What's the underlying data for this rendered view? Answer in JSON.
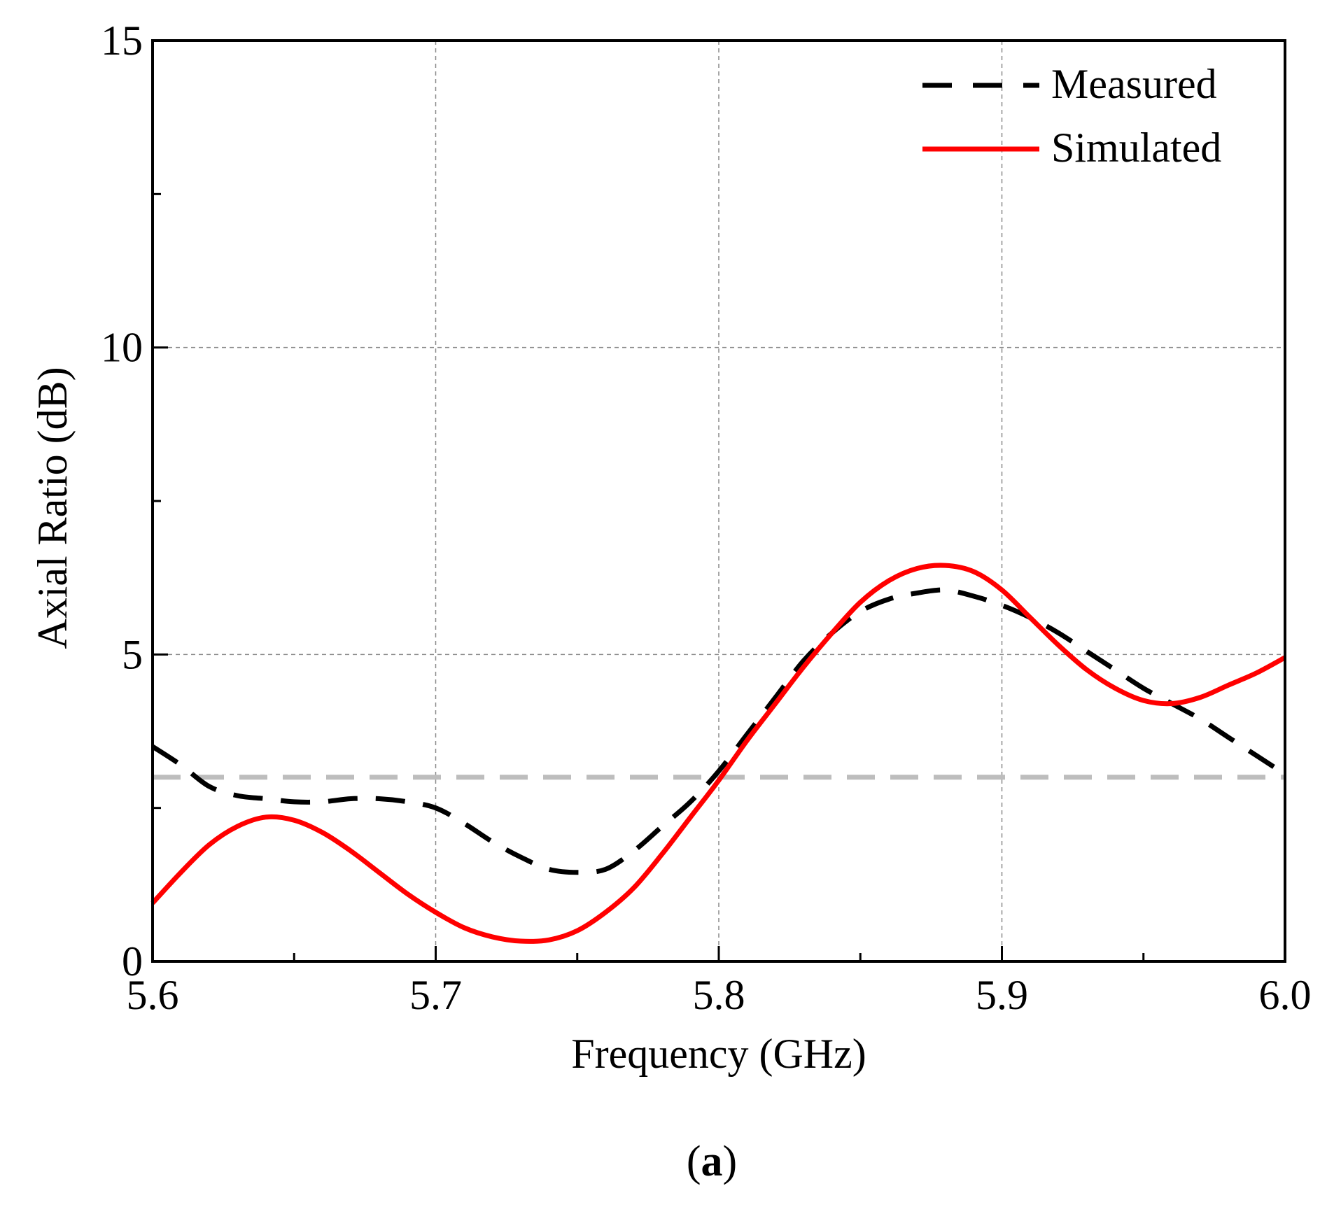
{
  "chart_data": {
    "type": "line",
    "title": "",
    "xlabel": "Frequency (GHz)",
    "ylabel": "Axial Ratio (dB)",
    "xlim": [
      5.6,
      6.0
    ],
    "ylim": [
      0,
      15
    ],
    "xticks": [
      5.6,
      5.7,
      5.8,
      5.9,
      6.0
    ],
    "xtick_labels": [
      "5.6",
      "5.7",
      "5.8",
      "5.9",
      "6.0"
    ],
    "yticks": [
      0,
      5,
      10,
      15
    ],
    "ytick_labels": [
      "0",
      "5",
      "10",
      "15"
    ],
    "grid": true,
    "legend_position": "top-right",
    "reference_line": {
      "y": 3,
      "color": "#bdbdbd",
      "style": "dashed"
    },
    "series": [
      {
        "name": "Measured",
        "color": "#000000",
        "style": "dashed",
        "x": [
          5.6,
          5.61,
          5.62,
          5.63,
          5.64,
          5.65,
          5.66,
          5.67,
          5.68,
          5.69,
          5.7,
          5.71,
          5.72,
          5.73,
          5.74,
          5.75,
          5.76,
          5.77,
          5.78,
          5.79,
          5.8,
          5.81,
          5.82,
          5.83,
          5.84,
          5.85,
          5.86,
          5.87,
          5.88,
          5.89,
          5.9,
          5.91,
          5.92,
          5.93,
          5.94,
          5.95,
          5.96,
          5.97,
          5.98,
          5.99,
          6.0
        ],
        "values": [
          3.5,
          3.2,
          2.85,
          2.7,
          2.65,
          2.6,
          2.6,
          2.65,
          2.65,
          2.6,
          2.5,
          2.25,
          1.95,
          1.7,
          1.5,
          1.45,
          1.5,
          1.8,
          2.2,
          2.6,
          3.1,
          3.7,
          4.3,
          4.9,
          5.35,
          5.7,
          5.9,
          6.0,
          6.05,
          5.95,
          5.8,
          5.6,
          5.35,
          5.05,
          4.75,
          4.45,
          4.2,
          3.95,
          3.65,
          3.35,
          3.05
        ]
      },
      {
        "name": "Simulated",
        "color": "#ff0000",
        "style": "solid",
        "x": [
          5.6,
          5.61,
          5.62,
          5.63,
          5.64,
          5.65,
          5.66,
          5.67,
          5.68,
          5.69,
          5.7,
          5.71,
          5.72,
          5.73,
          5.74,
          5.75,
          5.76,
          5.77,
          5.78,
          5.79,
          5.8,
          5.81,
          5.82,
          5.83,
          5.84,
          5.85,
          5.86,
          5.87,
          5.88,
          5.89,
          5.9,
          5.91,
          5.92,
          5.93,
          5.94,
          5.95,
          5.96,
          5.97,
          5.98,
          5.99,
          6.0
        ],
        "values": [
          0.95,
          1.45,
          1.9,
          2.2,
          2.35,
          2.3,
          2.1,
          1.8,
          1.45,
          1.1,
          0.8,
          0.55,
          0.4,
          0.33,
          0.35,
          0.5,
          0.8,
          1.2,
          1.75,
          2.35,
          2.95,
          3.6,
          4.2,
          4.8,
          5.35,
          5.85,
          6.2,
          6.4,
          6.45,
          6.35,
          6.05,
          5.6,
          5.15,
          4.75,
          4.45,
          4.25,
          4.2,
          4.3,
          4.5,
          4.7,
          4.95
        ]
      }
    ],
    "panel_label": {
      "open": "(",
      "letter": "a",
      "close": ")"
    }
  }
}
